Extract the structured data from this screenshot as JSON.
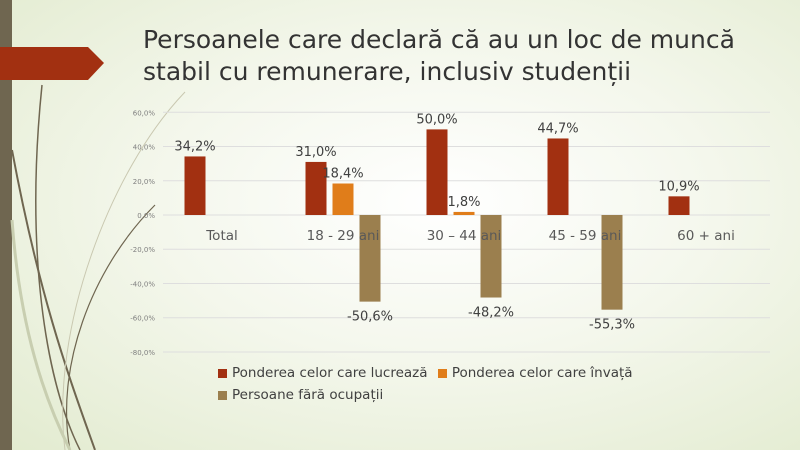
{
  "title": "Persoanele care declară că au un loc de muncă stabil cu remunerare, inclusiv studenții",
  "chart_data": {
    "type": "bar",
    "title": "Persoanele care declară că au un loc de muncă stabil cu remunerare, inclusiv studenții",
    "categories": [
      "Total",
      "18 - 29 ani",
      "30 – 44 ani",
      "45 - 59 ani",
      "60 + ani"
    ],
    "series": [
      {
        "name": "Ponderea celor care lucrează",
        "color": "#a23011",
        "values": [
          34.2,
          31.0,
          50.0,
          44.7,
          10.9
        ],
        "labels": [
          "34,2%",
          "31,0%",
          "50,0%",
          "44,7%",
          "10,9%"
        ]
      },
      {
        "name": "Ponderea celor care învață",
        "color": "#e07d1a",
        "values": [
          null,
          18.4,
          1.8,
          null,
          null
        ],
        "labels": [
          "",
          "18,4%",
          "1,8%",
          "",
          ""
        ]
      },
      {
        "name": "Persoane fără ocupații",
        "color": "#9b7f4e",
        "values": [
          null,
          -50.6,
          -48.2,
          -55.3,
          null
        ],
        "labels": [
          "",
          "-50,6%",
          "-48,2%",
          "-55,3%",
          ""
        ]
      }
    ],
    "yticks": [
      "60,0%",
      "40,0%",
      "20,0%",
      "0,0%",
      "-20,0%",
      "-40,0%",
      "-60,0%",
      "-80,0%"
    ],
    "ytick_values": [
      60,
      40,
      20,
      0,
      -20,
      -40,
      -60,
      -80
    ],
    "ylim": [
      -80,
      60
    ],
    "grid": true,
    "legend_position": "bottom"
  }
}
